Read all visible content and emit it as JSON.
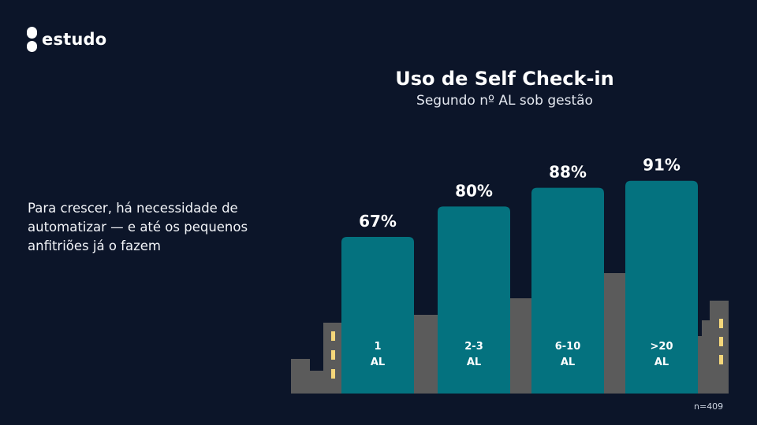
{
  "brand": {
    "logo_text": "estudo",
    "logo_icon": "estudo-logo-icon"
  },
  "side_text": "Para crescer, há necessidade de automatizar — e até os pequenos anfitriões já o fazem",
  "footnote": "n=409",
  "colors": {
    "background": "#0c1529",
    "bar": "#04727f",
    "building": "#5b5b5b",
    "window": "#f5d77a",
    "text": "#ffffff"
  },
  "chart_data": {
    "type": "bar",
    "title": "Uso de Self Check-in",
    "subtitle": "Segundo nº AL sob gestão",
    "xlabel": "",
    "ylabel": "",
    "ylim": [
      0,
      100
    ],
    "grid": false,
    "legend": "none",
    "categories": [
      {
        "line1": "1",
        "line2": "AL"
      },
      {
        "line1": "2-3",
        "line2": "AL"
      },
      {
        "line1": "6-10",
        "line2": "AL"
      },
      {
        "line1": ">20",
        "line2": "AL"
      }
    ],
    "values": [
      67,
      80,
      88,
      91
    ],
    "value_labels": [
      "67%",
      "80%",
      "88%",
      "91%"
    ]
  }
}
